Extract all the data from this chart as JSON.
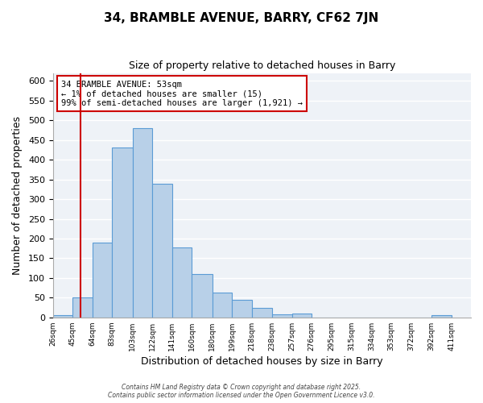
{
  "title": "34, BRAMBLE AVENUE, BARRY, CF62 7JN",
  "subtitle": "Size of property relative to detached houses in Barry",
  "xlabel": "Distribution of detached houses by size in Barry",
  "ylabel": "Number of detached properties",
  "bin_labels": [
    "26sqm",
    "45sqm",
    "64sqm",
    "83sqm",
    "103sqm",
    "122sqm",
    "141sqm",
    "160sqm",
    "180sqm",
    "199sqm",
    "218sqm",
    "238sqm",
    "257sqm",
    "276sqm",
    "295sqm",
    "315sqm",
    "334sqm",
    "353sqm",
    "372sqm",
    "392sqm",
    "411sqm"
  ],
  "bar_values": [
    5,
    50,
    190,
    432,
    480,
    340,
    178,
    110,
    62,
    44,
    24,
    8,
    10,
    0,
    0,
    0,
    0,
    0,
    0,
    5
  ],
  "bar_color": "#b8d0e8",
  "bar_edge_color": "#5b9bd5",
  "background_color": "#eef2f7",
  "grid_color": "#ffffff",
  "ylim": [
    0,
    620
  ],
  "yticks": [
    0,
    50,
    100,
    150,
    200,
    250,
    300,
    350,
    400,
    450,
    500,
    550,
    600
  ],
  "property_line_x": 53,
  "annotation_text_line1": "34 BRAMBLE AVENUE: 53sqm",
  "annotation_text_line2": "← 1% of detached houses are smaller (15)",
  "annotation_text_line3": "99% of semi-detached houses are larger (1,921) →",
  "annotation_box_color": "#cc0000",
  "footer_line1": "Contains HM Land Registry data © Crown copyright and database right 2025.",
  "footer_line2": "Contains public sector information licensed under the Open Government Licence v3.0.",
  "bin_edges": [
    26,
    45,
    64,
    83,
    103,
    122,
    141,
    160,
    180,
    199,
    218,
    238,
    257,
    276,
    295,
    315,
    334,
    353,
    372,
    392,
    411
  ]
}
